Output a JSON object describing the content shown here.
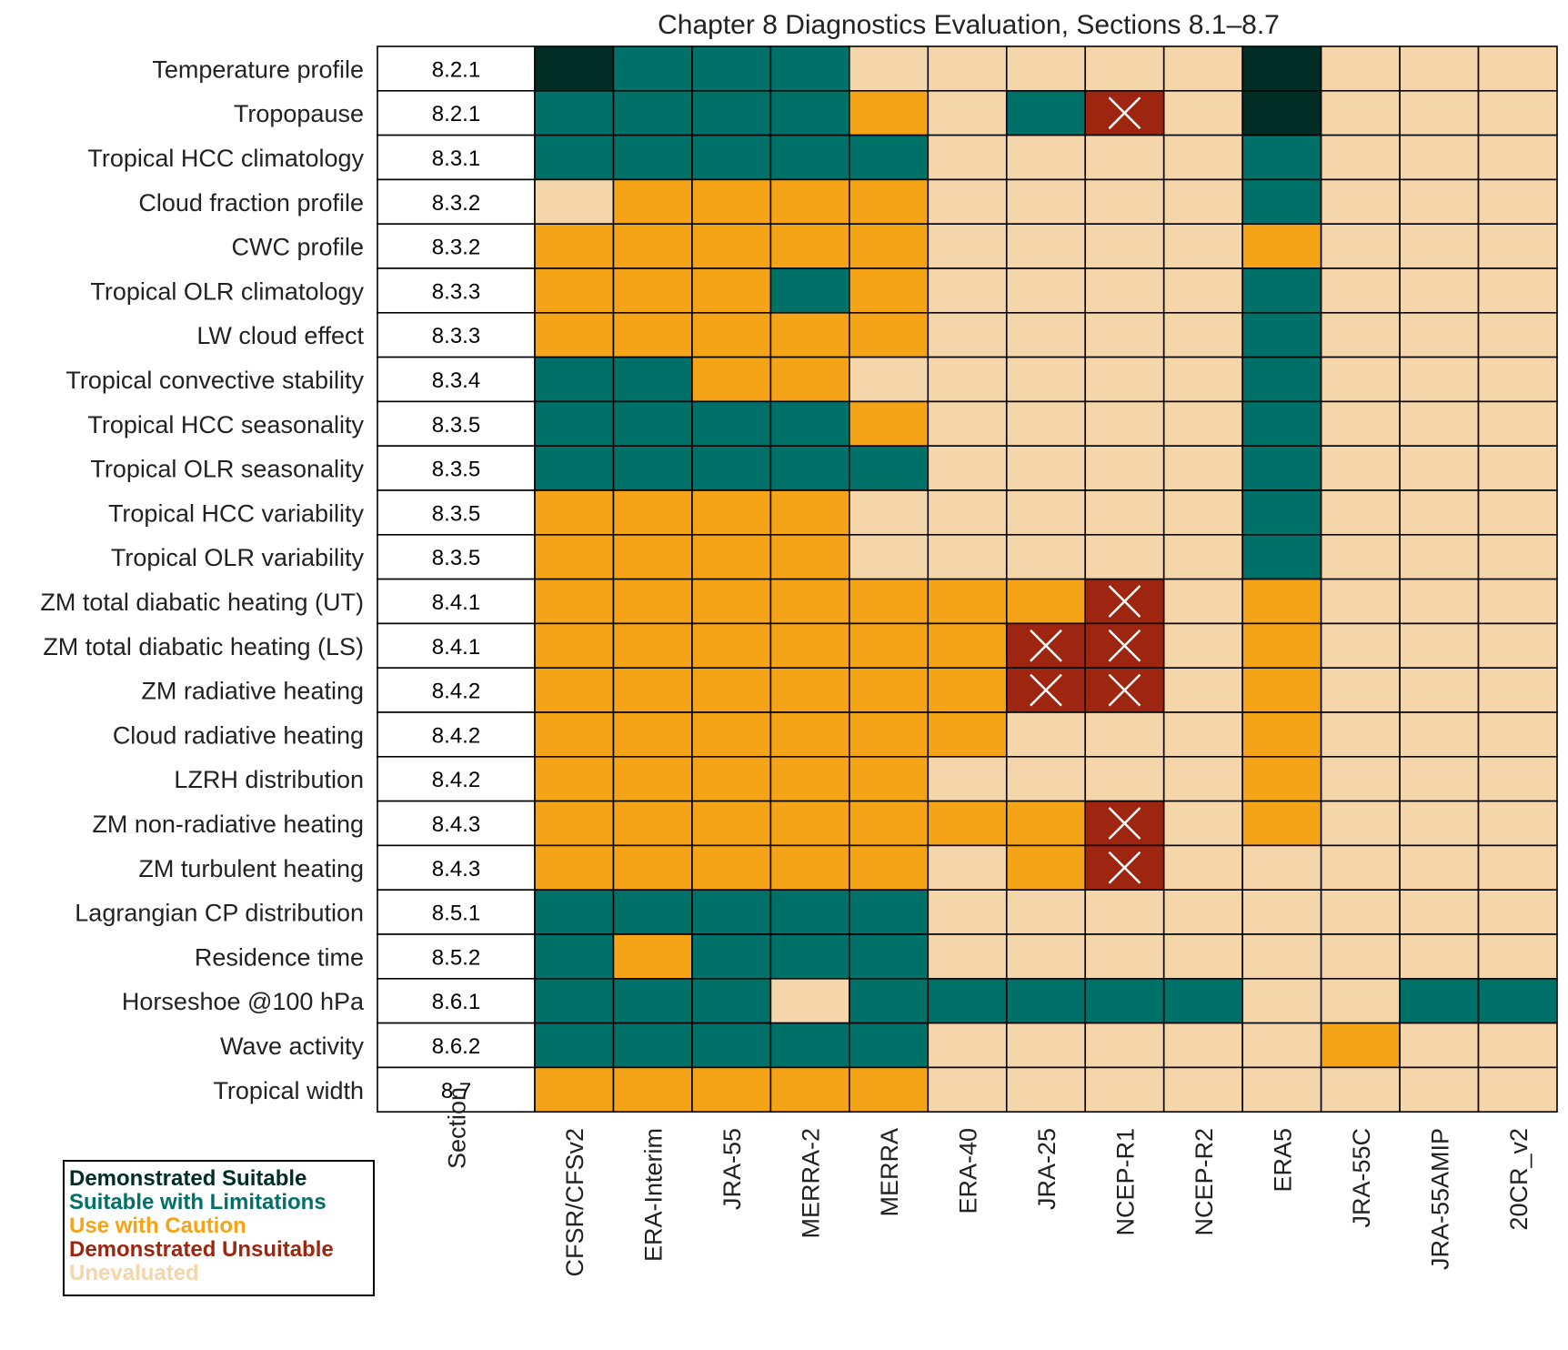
{
  "chart_data": {
    "type": "heatmap",
    "title": "Chapter 8 Diagnostics Evaluation, Sections 8.1–8.7",
    "xlabel": "",
    "ylabel": "",
    "section_header": "Section",
    "columns": [
      "CFSR/CFSv2",
      "ERA-Interim",
      "JRA-55",
      "MERRA-2",
      "MERRA",
      "ERA-40",
      "JRA-25",
      "NCEP-R1",
      "NCEP-R2",
      "ERA5",
      "JRA-55C",
      "JRA-55AMIP",
      "20CR_v2"
    ],
    "rows": [
      {
        "label": "Temperature profile",
        "section": "8.2.1",
        "values": [
          "DS",
          "SL",
          "SL",
          "SL",
          "UE",
          "UE",
          "UE",
          "UE",
          "UE",
          "DS",
          "UE",
          "UE",
          "UE"
        ]
      },
      {
        "label": "Tropopause",
        "section": "8.2.1",
        "values": [
          "SL",
          "SL",
          "SL",
          "SL",
          "UC",
          "UE",
          "SL",
          "DU",
          "UE",
          "DS",
          "UE",
          "UE",
          "UE"
        ]
      },
      {
        "label": "Tropical HCC climatology",
        "section": "8.3.1",
        "values": [
          "SL",
          "SL",
          "SL",
          "SL",
          "SL",
          "UE",
          "UE",
          "UE",
          "UE",
          "SL",
          "UE",
          "UE",
          "UE"
        ]
      },
      {
        "label": "Cloud fraction profile",
        "section": "8.3.2",
        "values": [
          "UE",
          "UC",
          "UC",
          "UC",
          "UC",
          "UE",
          "UE",
          "UE",
          "UE",
          "SL",
          "UE",
          "UE",
          "UE"
        ]
      },
      {
        "label": "CWC profile",
        "section": "8.3.2",
        "values": [
          "UC",
          "UC",
          "UC",
          "UC",
          "UC",
          "UE",
          "UE",
          "UE",
          "UE",
          "UC",
          "UE",
          "UE",
          "UE"
        ]
      },
      {
        "label": "Tropical OLR climatology",
        "section": "8.3.3",
        "values": [
          "UC",
          "UC",
          "UC",
          "SL",
          "UC",
          "UE",
          "UE",
          "UE",
          "UE",
          "SL",
          "UE",
          "UE",
          "UE"
        ]
      },
      {
        "label": "LW cloud effect",
        "section": "8.3.3",
        "values": [
          "UC",
          "UC",
          "UC",
          "UC",
          "UC",
          "UE",
          "UE",
          "UE",
          "UE",
          "SL",
          "UE",
          "UE",
          "UE"
        ]
      },
      {
        "label": "Tropical convective stability",
        "section": "8.3.4",
        "values": [
          "SL",
          "SL",
          "UC",
          "UC",
          "UE",
          "UE",
          "UE",
          "UE",
          "UE",
          "SL",
          "UE",
          "UE",
          "UE"
        ]
      },
      {
        "label": "Tropical HCC seasonality",
        "section": "8.3.5",
        "values": [
          "SL",
          "SL",
          "SL",
          "SL",
          "UC",
          "UE",
          "UE",
          "UE",
          "UE",
          "SL",
          "UE",
          "UE",
          "UE"
        ]
      },
      {
        "label": "Tropical OLR seasonality",
        "section": "8.3.5",
        "values": [
          "SL",
          "SL",
          "SL",
          "SL",
          "SL",
          "UE",
          "UE",
          "UE",
          "UE",
          "SL",
          "UE",
          "UE",
          "UE"
        ]
      },
      {
        "label": "Tropical HCC variability",
        "section": "8.3.5",
        "values": [
          "UC",
          "UC",
          "UC",
          "UC",
          "UE",
          "UE",
          "UE",
          "UE",
          "UE",
          "SL",
          "UE",
          "UE",
          "UE"
        ]
      },
      {
        "label": "Tropical OLR variability",
        "section": "8.3.5",
        "values": [
          "UC",
          "UC",
          "UC",
          "UC",
          "UE",
          "UE",
          "UE",
          "UE",
          "UE",
          "SL",
          "UE",
          "UE",
          "UE"
        ]
      },
      {
        "label": "ZM total diabatic heating (UT)",
        "section": "8.4.1",
        "values": [
          "UC",
          "UC",
          "UC",
          "UC",
          "UC",
          "UC",
          "UC",
          "DU",
          "UE",
          "UC",
          "UE",
          "UE",
          "UE"
        ]
      },
      {
        "label": "ZM total diabatic heating (LS)",
        "section": "8.4.1",
        "values": [
          "UC",
          "UC",
          "UC",
          "UC",
          "UC",
          "UC",
          "DU",
          "DU",
          "UE",
          "UC",
          "UE",
          "UE",
          "UE"
        ]
      },
      {
        "label": "ZM radiative heating",
        "section": "8.4.2",
        "values": [
          "UC",
          "UC",
          "UC",
          "UC",
          "UC",
          "UC",
          "DU",
          "DU",
          "UE",
          "UC",
          "UE",
          "UE",
          "UE"
        ]
      },
      {
        "label": "Cloud radiative heating",
        "section": "8.4.2",
        "values": [
          "UC",
          "UC",
          "UC",
          "UC",
          "UC",
          "UC",
          "UE",
          "UE",
          "UE",
          "UC",
          "UE",
          "UE",
          "UE"
        ]
      },
      {
        "label": "LZRH distribution",
        "section": "8.4.2",
        "values": [
          "UC",
          "UC",
          "UC",
          "UC",
          "UC",
          "UE",
          "UE",
          "UE",
          "UE",
          "UC",
          "UE",
          "UE",
          "UE"
        ]
      },
      {
        "label": "ZM non-radiative heating",
        "section": "8.4.3",
        "values": [
          "UC",
          "UC",
          "UC",
          "UC",
          "UC",
          "UC",
          "UC",
          "DU",
          "UE",
          "UC",
          "UE",
          "UE",
          "UE"
        ]
      },
      {
        "label": "ZM turbulent heating",
        "section": "8.4.3",
        "values": [
          "UC",
          "UC",
          "UC",
          "UC",
          "UC",
          "UE",
          "UC",
          "DU",
          "UE",
          "UE",
          "UE",
          "UE",
          "UE"
        ]
      },
      {
        "label": "Lagrangian CP distribution ",
        "section": "8.5.1",
        "values": [
          "SL",
          "SL",
          "SL",
          "SL",
          "SL",
          "UE",
          "UE",
          "UE",
          "UE",
          "UE",
          "UE",
          "UE",
          "UE"
        ]
      },
      {
        "label": "Residence time",
        "section": "8.5.2",
        "values": [
          "SL",
          "UC",
          "SL",
          "SL",
          "SL",
          "UE",
          "UE",
          "UE",
          "UE",
          "UE",
          "UE",
          "UE",
          "UE"
        ]
      },
      {
        "label": "Horseshoe @100 hPa",
        "section": "8.6.1",
        "values": [
          "SL",
          "SL",
          "SL",
          "UE",
          "SL",
          "SL",
          "SL",
          "SL",
          "SL",
          "UE",
          "UE",
          "SL",
          "SL"
        ]
      },
      {
        "label": "Wave activity",
        "section": "8.6.2",
        "values": [
          "SL",
          "SL",
          "SL",
          "SL",
          "SL",
          "UE",
          "UE",
          "UE",
          "UE",
          "UE",
          "UC",
          "UE",
          "UE"
        ]
      },
      {
        "label": "Tropical width ",
        "section": "8.7",
        "values": [
          "UC",
          "UC",
          "UC",
          "UC",
          "UC",
          "UE",
          "UE",
          "UE",
          "UE",
          "UE",
          "UE",
          "UE",
          "UE"
        ]
      }
    ],
    "categories": [
      {
        "code": "DS",
        "name": "Demonstrated Suitable",
        "color": "#002e24"
      },
      {
        "code": "SL",
        "name": "Suitable with Limitations",
        "color": "#007168"
      },
      {
        "code": "UC",
        "name": "Use with Caution",
        "color": "#f5a418"
      },
      {
        "code": "DU",
        "name": "Demonstrated Unsuitable",
        "color": "#9e2610"
      },
      {
        "code": "UE",
        "name": "Unevaluated",
        "color": "#f5d6aa"
      }
    ],
    "unsuitable_marker": "cross",
    "legend_placement": "bottom-left"
  }
}
